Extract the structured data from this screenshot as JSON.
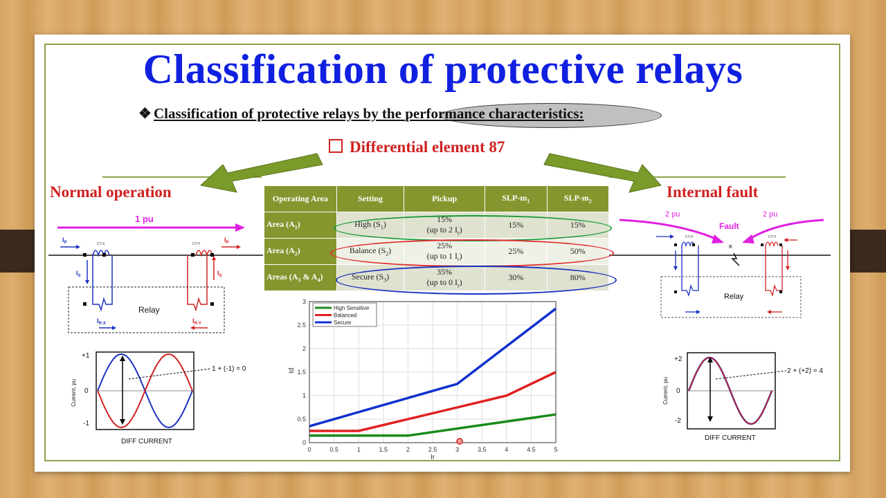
{
  "title": "Classification of protective relays",
  "subtitle": {
    "lead": "Classification of protective relays by the ",
    "highlight": "performance characteristics:"
  },
  "element": "Differential element 87",
  "normal": {
    "heading": "Normal operation",
    "flow_label": "1 pu",
    "relay_label": "Relay",
    "ct_left": "CT-X",
    "ct_right": "CT-Y",
    "ip": "I",
    "is": "I",
    "sub_p": "P",
    "sub_s": "S",
    "irx": "I",
    "irx_sub": "R-X",
    "iry": "I",
    "iry_sub": "R-Y",
    "wave": {
      "y_top": "+1",
      "y_mid": "0",
      "y_bot": "-1",
      "ylabel": "Current, pu",
      "xlabel": "DIFF CURRENT",
      "note": "1 + (-1) = 0"
    }
  },
  "fault": {
    "heading": "Internal fault",
    "left_pu": "2 pu",
    "right_pu": "2 pu",
    "fault_label": "Fault",
    "relay_label": "Relay",
    "ct_left": "CT-X",
    "ct_right": "CT-Y",
    "wave": {
      "y_top": "+2",
      "y_mid": "0",
      "y_bot": "-2",
      "ylabel": "Current, pu",
      "xlabel": "DIFF CURRENT",
      "note": "2 + (+2) = 4"
    }
  },
  "table": {
    "headers": [
      "Operating Area",
      "Setting",
      "Pickup",
      "SLP-m",
      "SLP-m"
    ],
    "header_subs": [
      "",
      "",
      "",
      "1",
      "2"
    ],
    "rows": [
      {
        "area": "Area (A",
        "area_sub": "1",
        "area_end": ")",
        "setting": "High (S",
        "setting_sub": "1",
        "pickup1": "15%",
        "pickup2": "(up to 2 I",
        "pickup_sub": "r",
        "m1": "15%",
        "m2": "15%"
      },
      {
        "area": "Area (A",
        "area_sub": "2",
        "area_end": ")",
        "setting": "Balance (S",
        "setting_sub": "2",
        "pickup1": "25%",
        "pickup2": "(up to 1 I",
        "pickup_sub": "r",
        "m1": "25%",
        "m2": "50%"
      },
      {
        "area": "Areas (A",
        "area_sub": "3",
        "area_end": " & A",
        "area_sub2": "4",
        "area_end2": ")",
        "setting": "Secure (S",
        "setting_sub": "3",
        "pickup1": "35%",
        "pickup2": "(up to 0 I",
        "pickup_sub": "r",
        "m1": "30%",
        "m2": "80%"
      }
    ]
  },
  "chart_data": {
    "type": "line",
    "xlabel": "Ir",
    "ylabel": "Id",
    "xlim": [
      0,
      5
    ],
    "ylim": [
      0,
      3
    ],
    "xticks": [
      "0",
      "0.5",
      "1",
      "1.5",
      "2",
      "2.5",
      "3",
      "3.5",
      "4",
      "4.5",
      "5"
    ],
    "yticks": [
      "0",
      "0.5",
      "1",
      "1.5",
      "2",
      "2.5",
      "3"
    ],
    "grid": true,
    "legend": "top-left",
    "series": [
      {
        "name": "High Sensitive",
        "color": "#1a8a1a",
        "x": [
          0,
          1,
          2,
          5
        ],
        "y": [
          0.15,
          0.15,
          0.15,
          0.6
        ]
      },
      {
        "name": "Balanced",
        "color": "#e02020",
        "x": [
          0,
          1,
          4,
          5
        ],
        "y": [
          0.25,
          0.25,
          1.0,
          1.5
        ]
      },
      {
        "name": "Secure",
        "color": "#1030d0",
        "x": [
          0,
          3,
          5
        ],
        "y": [
          0.35,
          1.25,
          2.85
        ]
      }
    ]
  }
}
